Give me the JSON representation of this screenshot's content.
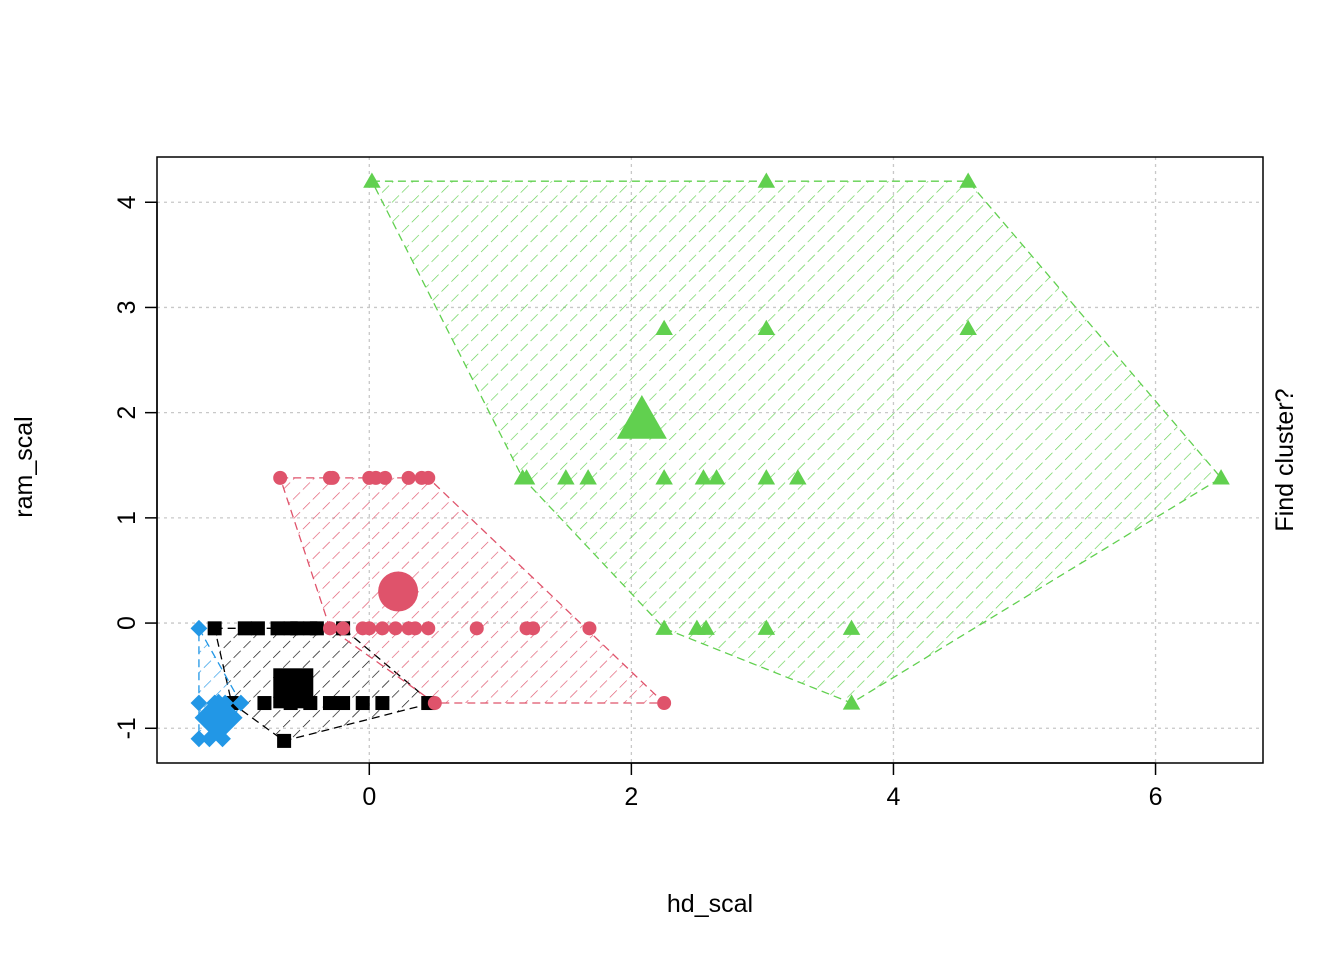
{
  "chart_data": {
    "type": "scatter",
    "title": "",
    "xlabel": "hd_scal",
    "ylabel": "ram_scal",
    "right_label": "Find cluster?",
    "xlim": [
      -1.62,
      6.82
    ],
    "ylim": [
      -1.33,
      4.43
    ],
    "xticks": [
      0,
      2,
      4,
      6
    ],
    "yticks": [
      -1,
      0,
      1,
      2,
      3,
      4
    ],
    "grid": true,
    "legend": "none",
    "clusters": [
      {
        "id": 1,
        "color": "#000000",
        "shape": "square",
        "center": [
          -0.58,
          -0.62
        ],
        "points": [
          [
            -1.18,
            -0.05
          ],
          [
            -0.95,
            -0.05
          ],
          [
            -0.85,
            -0.05
          ],
          [
            -0.7,
            -0.05
          ],
          [
            -0.6,
            -0.05
          ],
          [
            -0.55,
            -0.05
          ],
          [
            -0.45,
            -0.05
          ],
          [
            -0.4,
            -0.05
          ],
          [
            -0.2,
            -0.05
          ],
          [
            -1.05,
            -0.76
          ],
          [
            -0.8,
            -0.76
          ],
          [
            -0.6,
            -0.76
          ],
          [
            -0.45,
            -0.76
          ],
          [
            -0.3,
            -0.76
          ],
          [
            -0.2,
            -0.76
          ],
          [
            -0.05,
            -0.76
          ],
          [
            0.1,
            -0.76
          ],
          [
            0.45,
            -0.76
          ],
          [
            -0.65,
            -1.12
          ]
        ],
        "hull": [
          [
            -1.18,
            -0.05
          ],
          [
            -0.2,
            -0.05
          ],
          [
            0.48,
            -0.76
          ],
          [
            -0.65,
            -1.12
          ],
          [
            -1.05,
            -0.76
          ]
        ]
      },
      {
        "id": 2,
        "color": "#DF536B",
        "shape": "circle",
        "center": [
          0.22,
          0.3
        ],
        "points": [
          [
            -0.68,
            1.38
          ],
          [
            -0.3,
            1.38
          ],
          [
            -0.28,
            1.38
          ],
          [
            0.0,
            1.38
          ],
          [
            0.05,
            1.38
          ],
          [
            0.12,
            1.38
          ],
          [
            0.3,
            1.38
          ],
          [
            0.4,
            1.38
          ],
          [
            0.45,
            1.38
          ],
          [
            -0.3,
            -0.05
          ],
          [
            -0.2,
            -0.05
          ],
          [
            -0.05,
            -0.05
          ],
          [
            0.0,
            -0.05
          ],
          [
            0.1,
            -0.05
          ],
          [
            0.2,
            -0.05
          ],
          [
            0.3,
            -0.05
          ],
          [
            0.35,
            -0.05
          ],
          [
            0.45,
            -0.05
          ],
          [
            0.82,
            -0.05
          ],
          [
            1.2,
            -0.05
          ],
          [
            1.25,
            -0.05
          ],
          [
            1.68,
            -0.05
          ],
          [
            0.5,
            -0.76
          ],
          [
            2.25,
            -0.76
          ]
        ],
        "hull": [
          [
            -0.68,
            1.38
          ],
          [
            0.45,
            1.38
          ],
          [
            2.25,
            -0.76
          ],
          [
            0.5,
            -0.76
          ],
          [
            -0.3,
            -0.05
          ]
        ]
      },
      {
        "id": 3,
        "color": "#61D04F",
        "shape": "triangle",
        "center": [
          2.08,
          1.93
        ],
        "points": [
          [
            0.02,
            4.2
          ],
          [
            3.03,
            4.2
          ],
          [
            4.57,
            4.2
          ],
          [
            2.25,
            2.8
          ],
          [
            3.03,
            2.8
          ],
          [
            4.57,
            2.8
          ],
          [
            1.17,
            1.38
          ],
          [
            1.2,
            1.38
          ],
          [
            1.5,
            1.38
          ],
          [
            1.67,
            1.38
          ],
          [
            2.25,
            1.38
          ],
          [
            2.55,
            1.38
          ],
          [
            2.65,
            1.38
          ],
          [
            3.03,
            1.38
          ],
          [
            3.27,
            1.38
          ],
          [
            6.5,
            1.38
          ],
          [
            2.25,
            -0.05
          ],
          [
            2.5,
            -0.05
          ],
          [
            2.57,
            -0.05
          ],
          [
            3.03,
            -0.05
          ],
          [
            3.68,
            -0.05
          ],
          [
            3.68,
            -0.76
          ]
        ],
        "hull": [
          [
            0.02,
            4.2
          ],
          [
            4.57,
            4.2
          ],
          [
            6.5,
            1.38
          ],
          [
            3.68,
            -0.76
          ],
          [
            2.25,
            -0.05
          ],
          [
            1.17,
            1.38
          ]
        ]
      },
      {
        "id": 4,
        "color": "#2297E6",
        "shape": "diamond",
        "center": [
          -1.15,
          -0.9
        ],
        "points": [
          [
            -1.3,
            -0.05
          ],
          [
            -1.3,
            -0.76
          ],
          [
            -1.18,
            -0.76
          ],
          [
            -1.1,
            -0.76
          ],
          [
            -0.98,
            -0.76
          ],
          [
            -1.3,
            -1.1
          ],
          [
            -1.22,
            -1.1
          ],
          [
            -1.12,
            -1.1
          ]
        ],
        "hull": [
          [
            -1.3,
            -0.05
          ],
          [
            -0.98,
            -0.76
          ],
          [
            -1.12,
            -1.1
          ],
          [
            -1.3,
            -1.1
          ]
        ]
      }
    ]
  }
}
